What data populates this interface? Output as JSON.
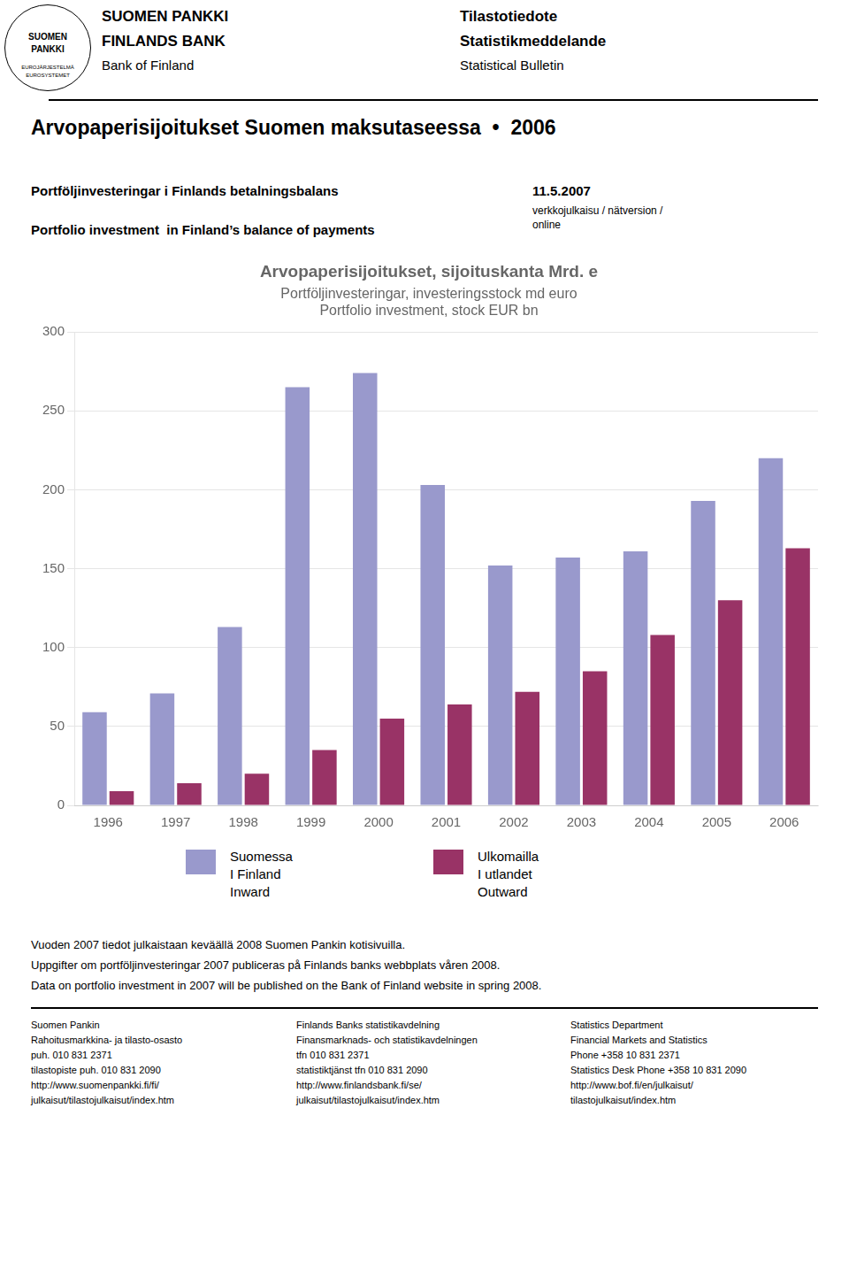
{
  "chart_data": {
    "type": "bar",
    "title": "Arvopaperisijoitukset, sijoituskanta Mrd. e",
    "subtitle": [
      "Portföljinvesteringar, investeringsstock md euro",
      "Portfolio investment, stock EUR bn"
    ],
    "categories": [
      "1996",
      "1997",
      "1998",
      "1999",
      "2000",
      "2001",
      "2002",
      "2003",
      "2004",
      "2005",
      "2006"
    ],
    "series": [
      {
        "name": "Suomessa\nI Finland\nInward",
        "color": "#9999cc",
        "values": [
          59,
          71,
          113,
          265,
          274,
          203,
          152,
          157,
          161,
          193,
          220
        ]
      },
      {
        "name": "Ulkomailla\nI utlandet\nOutward",
        "color": "#993366",
        "values": [
          9,
          14,
          20,
          35,
          55,
          64,
          72,
          85,
          108,
          130,
          163
        ]
      }
    ],
    "ylim": [
      0,
      300
    ],
    "yticks": [
      0,
      50,
      100,
      150,
      200,
      250,
      300
    ],
    "grid": true,
    "legend": "bottom",
    "annotations": [
      "SUOMEN",
      "PANKKI",
      "EUROJÄRJESTELMÄ",
      "EUROSYSTEMET",
      "SUOMEN PANKKI",
      "FINLANDS BANK",
      "Bank of Finland",
      "Tilastotiedote",
      "Statistikmeddelande",
      "Statistical Bulletin",
      "Arvopaperisijoitukset Suomen maksutaseessa  •  2006",
      "Portföljinvesteringar i Finlands betalningsbalans",
      "Portfolio investment  in Finland’s balance of payments",
      "11.5.2007",
      "verkkojulkaisu / nätversion /\nonline",
      "Vuoden 2007 tiedot julkaistaan keväällä 2008 Suomen Pankin kotisivuilla.",
      "Uppgifter om portföljinvesteringar 2007 publiceras på Finlands banks webbplats våren 2008.",
      "Data on portfolio investment in 2007 will be published on the Bank of Finland website in spring 2008.",
      "Suomen Pankin\nRahoitusmarkkina- ja tilasto-osasto\npuh. 010 831 2371\ntilastopiste puh. 010 831 2090\nhttp://www.suomenpankki.fi/fi/\njulkaisut/tilastojulkaisut/index.htm",
      "Finlands Banks statistikavdelning\nFinansmarknads- och statistikavdelningen\ntfn 010 831 2371\nstatistiktjänst tfn 010 831 2090\nhttp://www.finlandsbank.fi/se/\njulkaisut/tilastojulkaisut/index.htm",
      "Statistics Department\nFinancial Markets and Statistics\nPhone +358 10 831 2371\nStatistics Desk Phone +358 10 831 2090\nhttp://www.bof.fi/en/julkaisut/\ntilastojulkaisut/index.htm"
    ]
  }
}
